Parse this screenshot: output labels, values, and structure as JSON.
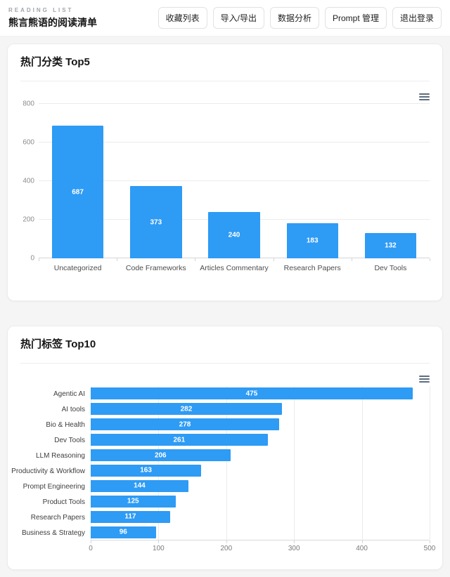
{
  "header": {
    "brand": "READING LIST",
    "site_title": "熊言熊语的阅读清单",
    "nav": [
      "收藏列表",
      "导入/导出",
      "数据分析",
      "Prompt 管理",
      "退出登录"
    ]
  },
  "colors": {
    "bar": "#2E9BF5",
    "grid": "#ebebeb",
    "axis_line": "#d6d6d6",
    "axis_text": "#8c8c8c",
    "category_text": "#4d4d4d",
    "value_label": "#ffffff"
  },
  "icons": {
    "chart_menu": "hamburger-menu"
  },
  "chart_data": [
    {
      "type": "bar",
      "orientation": "vertical",
      "card_title": "热门分类 Top5",
      "categories": [
        "Uncategorized",
        "Code Frameworks",
        "Articles Commentary",
        "Research Papers",
        "Dev Tools"
      ],
      "values": [
        687,
        373,
        240,
        183,
        132
      ],
      "ylim": [
        0,
        800
      ],
      "yticks": [
        0,
        200,
        400,
        600,
        800
      ],
      "grid": "horizontal",
      "legend": "none",
      "data_labels": "inside-center-white"
    },
    {
      "type": "bar",
      "orientation": "horizontal",
      "card_title": "热门标签 Top10",
      "categories": [
        "Agentic AI",
        "AI tools",
        "Bio & Health",
        "Dev Tools",
        "LLM Reasoning",
        "Productivity & Workflow",
        "Prompt Engineering",
        "Product Tools",
        "Research Papers",
        "Business & Strategy"
      ],
      "values": [
        475,
        282,
        278,
        261,
        206,
        163,
        144,
        125,
        117,
        96
      ],
      "xlim": [
        0,
        500
      ],
      "xticks": [
        0,
        100,
        200,
        300,
        400,
        500
      ],
      "grid": "vertical",
      "legend": "none",
      "data_labels": "inside-center-white"
    }
  ]
}
